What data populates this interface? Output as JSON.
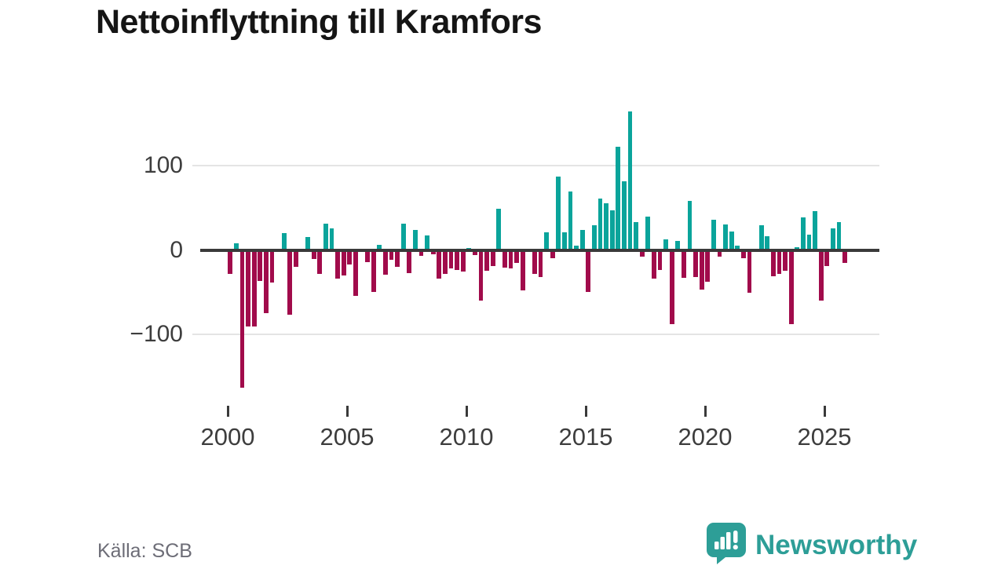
{
  "title": "Nettoinflyttning till Kramfors",
  "source": "Källa: SCB",
  "logo": {
    "brand": "Newsworthy"
  },
  "colors": {
    "positive_bar": "#0aa49b",
    "negative_bar": "#a10b4b",
    "axis": "#3a3a3a",
    "grid": "#e4e4e4",
    "tick_label": "#3d3d3d",
    "source_text": "#6d6d77",
    "logo_teal": "#2d9e97"
  },
  "chart_data": {
    "type": "bar",
    "title": "Nettoinflyttning till Kramfors",
    "frequency": "quarterly",
    "start_period": "2000Q1",
    "end_period": "2025Q4",
    "xlabel": "",
    "ylabel": "",
    "grid": "horizontal-only",
    "legend": "none",
    "y_ticks": [
      {
        "value": 100,
        "label": "100"
      },
      {
        "value": 0,
        "label": "0"
      },
      {
        "value": -100,
        "label": "−100"
      }
    ],
    "x_tick_years": [
      "2000",
      "2005",
      "2010",
      "2015",
      "2020",
      "2025"
    ],
    "ylim": [
      -175,
      175
    ],
    "values": [
      -28,
      8,
      -163,
      -91,
      -91,
      -37,
      -75,
      -39,
      -1,
      20,
      -77,
      -20,
      -2,
      15,
      -11,
      -28,
      31,
      26,
      -34,
      -30,
      -17,
      -54,
      -2,
      -14,
      -50,
      6,
      -29,
      -12,
      -20,
      31,
      -27,
      24,
      -7,
      17,
      -5,
      -34,
      -28,
      -22,
      -24,
      -26,
      2,
      -6,
      -60,
      -25,
      -19,
      49,
      -21,
      -22,
      -15,
      -48,
      -2,
      -28,
      -32,
      21,
      -10,
      87,
      21,
      69,
      5,
      24,
      -50,
      29,
      61,
      55,
      47,
      122,
      81,
      164,
      33,
      -8,
      40,
      -34,
      -24,
      13,
      -88,
      11,
      -33,
      58,
      -32,
      -47,
      -38,
      36,
      -8,
      30,
      22,
      5,
      -10,
      -51,
      1,
      29,
      16,
      -31,
      -28,
      -25,
      -88,
      3,
      39,
      18,
      46,
      -60,
      -19,
      26,
      33,
      -15
    ]
  }
}
